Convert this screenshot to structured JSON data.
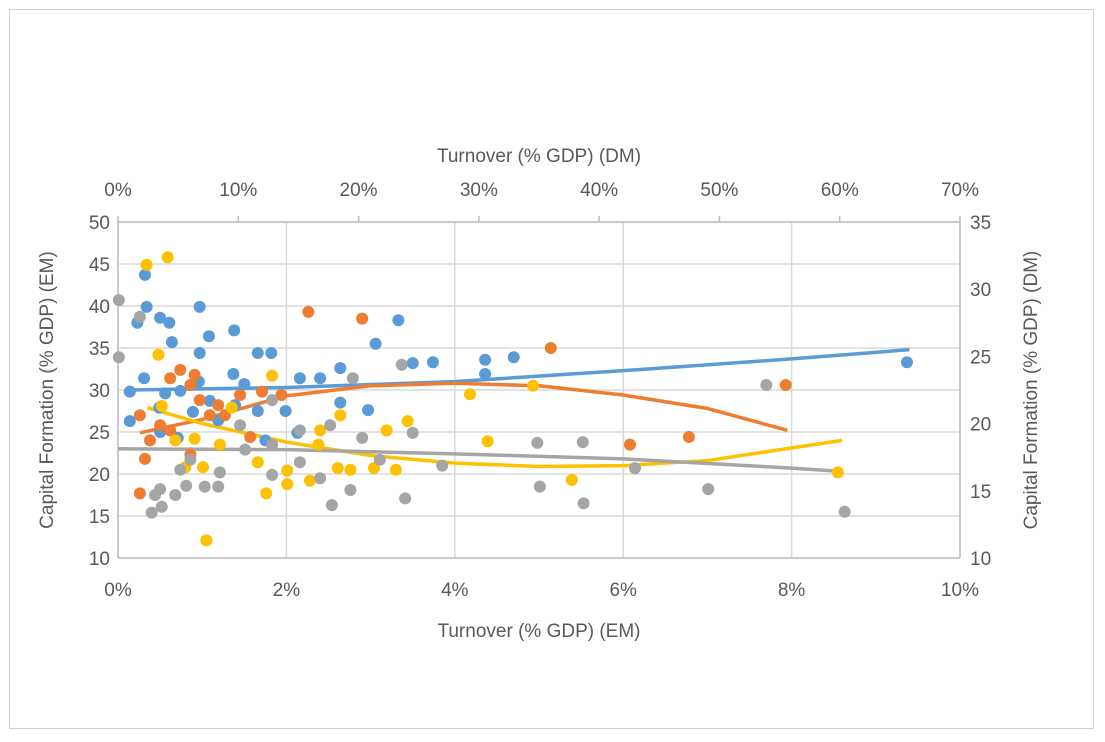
{
  "chart_data": {
    "type": "scatter",
    "title": "",
    "x_bottom": {
      "label": "Turnover (% GDP) (EM)",
      "range": [
        0,
        10
      ],
      "ticks": [
        "0%",
        "2%",
        "4%",
        "6%",
        "8%",
        "10%"
      ]
    },
    "x_top": {
      "label": "Turnover (% GDP) (DM)",
      "range": [
        0,
        70
      ],
      "ticks": [
        "0%",
        "10%",
        "20%",
        "30%",
        "40%",
        "50%",
        "60%",
        "70%"
      ]
    },
    "y_left": {
      "label": "Capital Formation (% GDP) (EM)",
      "range": [
        10,
        50
      ],
      "ticks": [
        "10",
        "15",
        "20",
        "25",
        "30",
        "35",
        "40",
        "45",
        "50"
      ]
    },
    "y_right": {
      "label": "Capital Formation (% GDP) (DM)",
      "range": [
        10,
        35
      ],
      "ticks": [
        "10",
        "15",
        "20",
        "25",
        "30",
        "35"
      ]
    },
    "grid": true,
    "legend": "none",
    "note_units": "points expressed in bottom-axis / left-axis units",
    "series": [
      {
        "color": "#5b9bd5",
        "points": [
          [
            0.32,
            43.7
          ],
          [
            0.34,
            39.9
          ],
          [
            0.23,
            38.0
          ],
          [
            0.5,
            38.6
          ],
          [
            0.61,
            38.0
          ],
          [
            0.64,
            35.7
          ],
          [
            0.97,
            39.9
          ],
          [
            1.08,
            36.4
          ],
          [
            1.38,
            37.1
          ],
          [
            0.97,
            34.4
          ],
          [
            1.66,
            34.4
          ],
          [
            1.82,
            34.4
          ],
          [
            1.37,
            31.9
          ],
          [
            0.96,
            31.0
          ],
          [
            1.5,
            30.7
          ],
          [
            0.31,
            31.4
          ],
          [
            0.14,
            29.8
          ],
          [
            0.56,
            29.6
          ],
          [
            0.74,
            29.9
          ],
          [
            1.09,
            28.7
          ],
          [
            1.39,
            28.2
          ],
          [
            1.66,
            27.5
          ],
          [
            1.99,
            27.5
          ],
          [
            2.16,
            31.4
          ],
          [
            2.4,
            31.4
          ],
          [
            2.64,
            32.6
          ],
          [
            3.06,
            35.5
          ],
          [
            3.33,
            38.3
          ],
          [
            3.74,
            33.3
          ],
          [
            4.36,
            31.9
          ],
          [
            4.36,
            33.6
          ],
          [
            4.7,
            33.9
          ],
          [
            3.5,
            33.2
          ],
          [
            2.97,
            27.6
          ],
          [
            2.13,
            24.9
          ],
          [
            0.14,
            26.3
          ],
          [
            0.49,
            27.9
          ],
          [
            0.89,
            27.4
          ],
          [
            1.19,
            26.4
          ],
          [
            1.75,
            24.0
          ],
          [
            0.71,
            24.3
          ],
          [
            9.37,
            33.3
          ],
          [
            2.64,
            28.5
          ],
          [
            0.5,
            25.0
          ]
        ],
        "trend": [
          [
            0.14,
            30.0
          ],
          [
            2,
            30.3
          ],
          [
            4,
            31.0
          ],
          [
            6,
            32.3
          ],
          [
            8,
            33.7
          ],
          [
            9.4,
            34.8
          ]
        ]
      },
      {
        "color": "#ed7d31",
        "points": [
          [
            2.26,
            39.3
          ],
          [
            2.9,
            38.5
          ],
          [
            5.14,
            35.0
          ],
          [
            7.93,
            30.6
          ],
          [
            6.78,
            24.4
          ],
          [
            6.08,
            23.5
          ],
          [
            0.26,
            27.0
          ],
          [
            0.32,
            21.8
          ],
          [
            0.26,
            17.7
          ],
          [
            0.74,
            32.4
          ],
          [
            0.62,
            31.4
          ],
          [
            0.86,
            30.6
          ],
          [
            0.97,
            28.8
          ],
          [
            1.09,
            27.0
          ],
          [
            1.19,
            28.2
          ],
          [
            1.45,
            29.4
          ],
          [
            1.71,
            29.8
          ],
          [
            1.94,
            29.4
          ],
          [
            0.91,
            31.8
          ],
          [
            0.5,
            25.8
          ],
          [
            0.86,
            22.3
          ],
          [
            0.38,
            24.0
          ],
          [
            1.27,
            27.0
          ],
          [
            0.62,
            25.2
          ],
          [
            1.57,
            24.4
          ]
        ],
        "trend": [
          [
            0.26,
            24.9
          ],
          [
            1,
            26.5
          ],
          [
            2,
            29.3
          ],
          [
            3,
            30.5
          ],
          [
            4,
            30.8
          ],
          [
            5,
            30.5
          ],
          [
            6,
            29.4
          ],
          [
            7,
            27.8
          ],
          [
            7.95,
            25.2
          ]
        ]
      },
      {
        "color": "#ffc000",
        "points": [
          [
            0.34,
            44.9
          ],
          [
            0.59,
            45.8
          ],
          [
            1.05,
            12.1
          ],
          [
            0.48,
            34.2
          ],
          [
            4.18,
            29.5
          ],
          [
            4.93,
            30.5
          ],
          [
            4.39,
            23.9
          ],
          [
            3.44,
            26.3
          ],
          [
            3.19,
            25.2
          ],
          [
            2.4,
            25.2
          ],
          [
            2.64,
            27.0
          ],
          [
            2.61,
            20.7
          ],
          [
            2.76,
            20.5
          ],
          [
            3.04,
            20.7
          ],
          [
            3.3,
            20.5
          ],
          [
            2.01,
            20.4
          ],
          [
            1.76,
            17.7
          ],
          [
            1.66,
            21.4
          ],
          [
            2.01,
            18.8
          ],
          [
            2.28,
            19.2
          ],
          [
            5.39,
            19.3
          ],
          [
            8.55,
            20.2
          ],
          [
            1.21,
            23.5
          ],
          [
            0.91,
            24.2
          ],
          [
            0.68,
            24.0
          ],
          [
            0.8,
            20.8
          ],
          [
            1.01,
            20.8
          ],
          [
            1.83,
            31.7
          ],
          [
            1.35,
            27.9
          ],
          [
            0.52,
            28.1
          ],
          [
            2.38,
            23.5
          ]
        ],
        "trend": [
          [
            0.35,
            27.9
          ],
          [
            1,
            26.0
          ],
          [
            2,
            23.8
          ],
          [
            3,
            22.2
          ],
          [
            4,
            21.3
          ],
          [
            5,
            20.9
          ],
          [
            6,
            21.0
          ],
          [
            7,
            21.6
          ],
          [
            8.6,
            24.0
          ]
        ]
      },
      {
        "color": "#a5a5a5",
        "points": [
          [
            0.01,
            40.7
          ],
          [
            0.01,
            33.9
          ],
          [
            0.26,
            38.7
          ],
          [
            0.4,
            15.4
          ],
          [
            0.52,
            16.1
          ],
          [
            0.44,
            17.5
          ],
          [
            0.5,
            18.2
          ],
          [
            0.68,
            17.5
          ],
          [
            0.81,
            18.6
          ],
          [
            1.03,
            18.5
          ],
          [
            1.19,
            18.5
          ],
          [
            0.74,
            20.5
          ],
          [
            0.86,
            21.7
          ],
          [
            1.21,
            20.2
          ],
          [
            1.51,
            22.9
          ],
          [
            1.83,
            23.5
          ],
          [
            1.83,
            19.9
          ],
          [
            2.16,
            21.4
          ],
          [
            2.4,
            19.5
          ],
          [
            2.54,
            16.3
          ],
          [
            2.76,
            18.1
          ],
          [
            2.9,
            24.3
          ],
          [
            3.11,
            21.7
          ],
          [
            3.41,
            17.1
          ],
          [
            3.37,
            33.0
          ],
          [
            2.79,
            31.4
          ],
          [
            3.5,
            24.9
          ],
          [
            3.85,
            21.0
          ],
          [
            4.98,
            23.7
          ],
          [
            5.01,
            18.5
          ],
          [
            5.52,
            23.8
          ],
          [
            5.53,
            16.5
          ],
          [
            6.14,
            20.7
          ],
          [
            7.01,
            18.2
          ],
          [
            7.7,
            30.6
          ],
          [
            8.63,
            15.5
          ],
          [
            2.16,
            25.2
          ],
          [
            2.52,
            25.8
          ],
          [
            1.83,
            28.8
          ],
          [
            1.45,
            25.8
          ]
        ],
        "trend": [
          [
            0,
            23.0
          ],
          [
            2,
            22.9
          ],
          [
            4,
            22.4
          ],
          [
            6,
            21.8
          ],
          [
            8,
            20.7
          ],
          [
            8.6,
            20.3
          ]
        ]
      }
    ]
  }
}
